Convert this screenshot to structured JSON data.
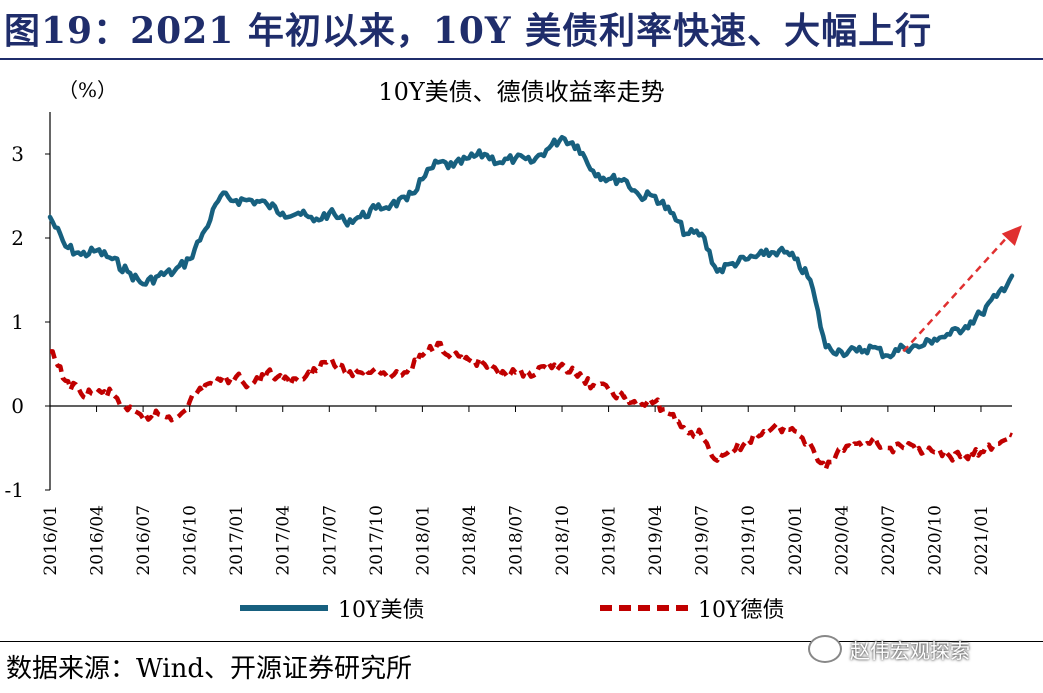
{
  "figure": {
    "title": "图19：2021 年初以来，10Y 美债利率快速、大幅上行",
    "source": "数据来源：Wind、开源证券研究所",
    "watermark": "赵伟宏观探索",
    "watermark_icon": "wechat-icon"
  },
  "chart_data": {
    "type": "line",
    "title": "10Y美债、德债收益率走势",
    "ylabel": "（%）",
    "xlabel": "",
    "ylim": [
      -1,
      3.5
    ],
    "yticks": [
      -1,
      0,
      1,
      2,
      3
    ],
    "xlim": [
      "2016/01",
      "2021/03"
    ],
    "xticks": [
      "2016/01",
      "2016/04",
      "2016/07",
      "2016/10",
      "2017/01",
      "2017/04",
      "2017/07",
      "2017/10",
      "2018/01",
      "2018/04",
      "2018/07",
      "2018/10",
      "2019/01",
      "2019/04",
      "2019/07",
      "2019/10",
      "2020/01",
      "2020/04",
      "2020/07",
      "2020/10",
      "2021/01"
    ],
    "legend_position": "bottom",
    "grid": false,
    "series": [
      {
        "name": "10Y美债",
        "color": "#17607f",
        "style": "solid",
        "x": [
          "2016/01",
          "2016/02",
          "2016/03",
          "2016/04",
          "2016/05",
          "2016/06",
          "2016/07",
          "2016/08",
          "2016/09",
          "2016/10",
          "2016/11",
          "2016/12",
          "2017/01",
          "2017/02",
          "2017/03",
          "2017/04",
          "2017/05",
          "2017/06",
          "2017/07",
          "2017/08",
          "2017/09",
          "2017/10",
          "2017/11",
          "2017/12",
          "2018/01",
          "2018/02",
          "2018/03",
          "2018/04",
          "2018/05",
          "2018/06",
          "2018/07",
          "2018/08",
          "2018/09",
          "2018/10",
          "2018/11",
          "2018/12",
          "2019/01",
          "2019/02",
          "2019/03",
          "2019/04",
          "2019/05",
          "2019/06",
          "2019/07",
          "2019/08",
          "2019/09",
          "2019/10",
          "2019/11",
          "2019/12",
          "2020/01",
          "2020/02",
          "2020/03",
          "2020/04",
          "2020/05",
          "2020/06",
          "2020/07",
          "2020/08",
          "2020/09",
          "2020/10",
          "2020/11",
          "2020/12",
          "2021/01",
          "2021/02",
          "2021/03"
        ],
        "values": [
          2.25,
          1.9,
          1.8,
          1.85,
          1.75,
          1.6,
          1.45,
          1.55,
          1.6,
          1.75,
          2.1,
          2.5,
          2.45,
          2.45,
          2.4,
          2.3,
          2.3,
          2.2,
          2.3,
          2.2,
          2.25,
          2.35,
          2.4,
          2.45,
          2.7,
          2.9,
          2.85,
          2.95,
          3.0,
          2.9,
          2.95,
          2.9,
          3.05,
          3.2,
          3.1,
          2.8,
          2.7,
          2.7,
          2.5,
          2.5,
          2.3,
          2.05,
          2.05,
          1.6,
          1.7,
          1.75,
          1.8,
          1.85,
          1.75,
          1.5,
          0.7,
          0.65,
          0.65,
          0.7,
          0.6,
          0.7,
          0.7,
          0.8,
          0.85,
          0.95,
          1.1,
          1.3,
          1.55
        ]
      },
      {
        "name": "10Y德债",
        "color": "#c00000",
        "style": "dashed",
        "x": [
          "2016/01",
          "2016/02",
          "2016/03",
          "2016/04",
          "2016/05",
          "2016/06",
          "2016/07",
          "2016/08",
          "2016/09",
          "2016/10",
          "2016/11",
          "2016/12",
          "2017/01",
          "2017/02",
          "2017/03",
          "2017/04",
          "2017/05",
          "2017/06",
          "2017/07",
          "2017/08",
          "2017/09",
          "2017/10",
          "2017/11",
          "2017/12",
          "2018/01",
          "2018/02",
          "2018/03",
          "2018/04",
          "2018/05",
          "2018/06",
          "2018/07",
          "2018/08",
          "2018/09",
          "2018/10",
          "2018/11",
          "2018/12",
          "2019/01",
          "2019/02",
          "2019/03",
          "2019/04",
          "2019/05",
          "2019/06",
          "2019/07",
          "2019/08",
          "2019/09",
          "2019/10",
          "2019/11",
          "2019/12",
          "2020/01",
          "2020/02",
          "2020/03",
          "2020/04",
          "2020/05",
          "2020/06",
          "2020/07",
          "2020/08",
          "2020/09",
          "2020/10",
          "2020/11",
          "2020/12",
          "2021/01",
          "2021/02",
          "2021/03"
        ],
        "values": [
          0.65,
          0.3,
          0.15,
          0.15,
          0.15,
          -0.05,
          -0.15,
          -0.1,
          -0.15,
          0.05,
          0.25,
          0.3,
          0.35,
          0.25,
          0.4,
          0.3,
          0.3,
          0.45,
          0.55,
          0.4,
          0.4,
          0.45,
          0.35,
          0.4,
          0.6,
          0.75,
          0.6,
          0.55,
          0.5,
          0.35,
          0.4,
          0.35,
          0.45,
          0.5,
          0.35,
          0.25,
          0.2,
          0.1,
          0.0,
          0.05,
          -0.1,
          -0.3,
          -0.35,
          -0.65,
          -0.55,
          -0.4,
          -0.3,
          -0.25,
          -0.3,
          -0.45,
          -0.75,
          -0.5,
          -0.45,
          -0.4,
          -0.5,
          -0.5,
          -0.5,
          -0.55,
          -0.6,
          -0.6,
          -0.55,
          -0.45,
          -0.35
        ]
      }
    ],
    "annotation": {
      "type": "trend-arrow",
      "color": "#e03030",
      "from": {
        "x": "2020/08",
        "y": 0.65
      },
      "to": {
        "x": "2021/03",
        "y": 2.2
      }
    }
  }
}
